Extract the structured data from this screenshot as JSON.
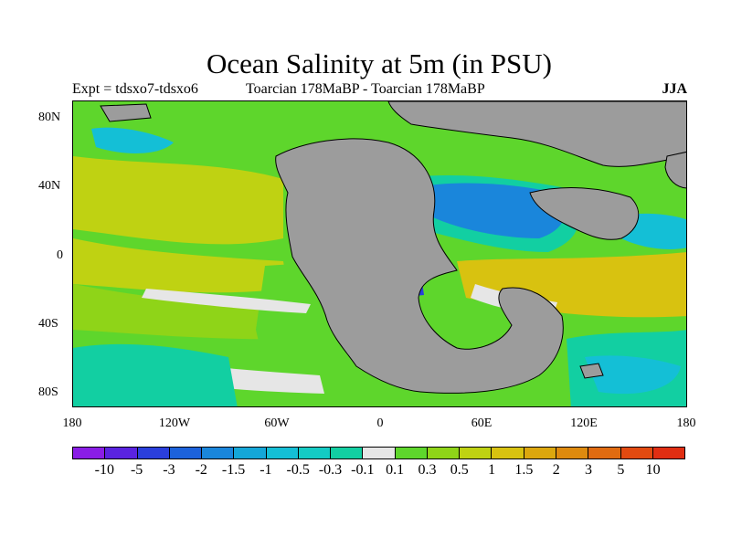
{
  "title": "Ocean Salinity at 5m (in PSU)",
  "subtitle_left": "Expt = tdsxo7-tdsxo6",
  "subtitle_center": "Toarcian 178MaBP - Toarcian 178MaBP",
  "subtitle_right": "JJA",
  "lat_ticks": [
    "80N",
    "40N",
    "0",
    "40S",
    "80S"
  ],
  "lon_ticks": [
    "180",
    "120W",
    "60W",
    "0",
    "60E",
    "120E",
    "180"
  ],
  "colorbar": {
    "labels": [
      "-10",
      "-5",
      "-3",
      "-2",
      "-1.5",
      "-1",
      "-0.5",
      "-0.3",
      "-0.1",
      "0.1",
      "0.3",
      "0.5",
      "1",
      "1.5",
      "2",
      "3",
      "5",
      "10"
    ],
    "colors": [
      "#8a1de6",
      "#5a23e0",
      "#2a3fdc",
      "#1c62db",
      "#1a86db",
      "#14a7d8",
      "#14bfd6",
      "#14cbc4",
      "#12cfa2",
      "#e6e6e6",
      "#5ed62c",
      "#8fd418",
      "#bfd212",
      "#d8c210",
      "#dca70e",
      "#de8a0e",
      "#e06b10",
      "#e24a10",
      "#e02e12"
    ]
  },
  "map_colors": {
    "land": "#9c9c9c",
    "neutral": "#e6e6e6",
    "fresh_light": "#12cfa2",
    "fresh_mid": "#14bfd6",
    "fresh_strong": "#1a86db",
    "fresh_deep": "#2a3fdc",
    "salty_light": "#5ed62c",
    "salty_mid": "#8fd418",
    "salty_strong": "#bfd212",
    "salty_high": "#d8c210"
  }
}
